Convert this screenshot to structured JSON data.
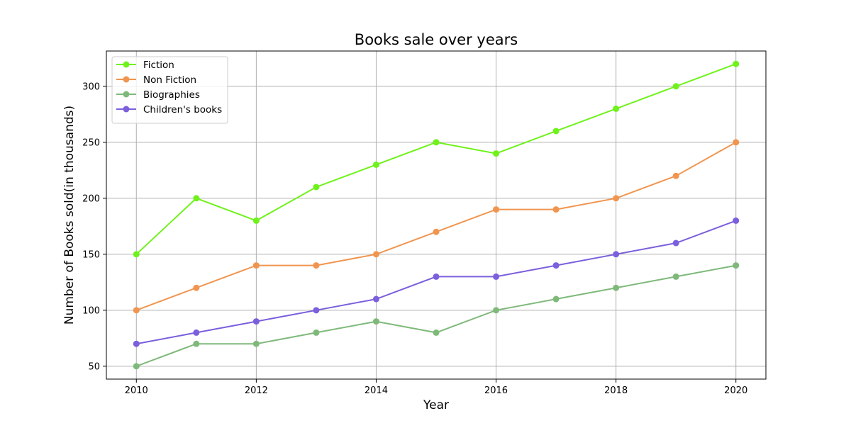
{
  "chart_data": {
    "type": "line",
    "title": "Books sale over years",
    "xlabel": "Year",
    "ylabel": "Number of Books sold(in thousands)",
    "x": [
      2010,
      2011,
      2012,
      2013,
      2014,
      2015,
      2016,
      2017,
      2018,
      2019,
      2020
    ],
    "xlim": [
      2009.5,
      2020.5
    ],
    "ylim": [
      38.5,
      331.5
    ],
    "xticks": [
      2010,
      2012,
      2014,
      2016,
      2018,
      2020
    ],
    "yticks": [
      50,
      100,
      150,
      200,
      250,
      300
    ],
    "grid": true,
    "legend_position": "top-left",
    "series": [
      {
        "name": "Fiction",
        "color": "#6ff21b",
        "values": [
          150,
          200,
          180,
          210,
          230,
          250,
          240,
          260,
          280,
          300,
          320
        ]
      },
      {
        "name": "Non Fiction",
        "color": "#f0954f",
        "values": [
          100,
          120,
          140,
          140,
          150,
          170,
          190,
          190,
          200,
          220,
          250
        ]
      },
      {
        "name": "Biographies",
        "color": "#7fb97a",
        "values": [
          50,
          70,
          70,
          80,
          90,
          80,
          100,
          110,
          120,
          130,
          140
        ]
      },
      {
        "name": "Children's books",
        "color": "#7b5fdc",
        "values": [
          70,
          80,
          90,
          100,
          110,
          130,
          130,
          140,
          150,
          160,
          180
        ]
      }
    ]
  }
}
